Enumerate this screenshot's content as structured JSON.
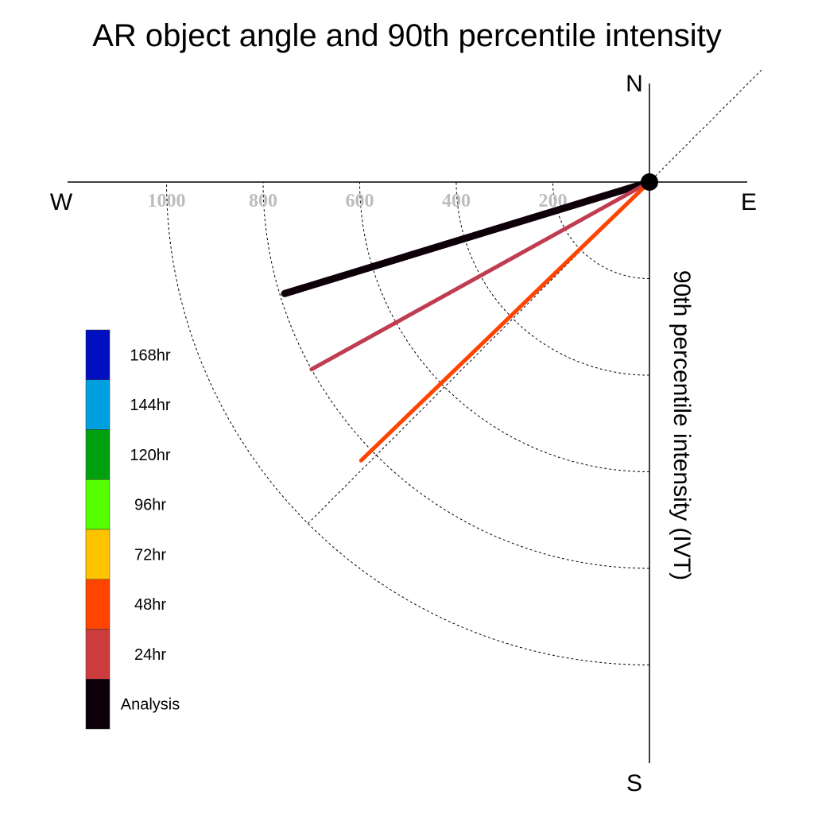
{
  "chart_data": {
    "type": "polar-line",
    "title": "AR object angle and 90th percentile intensity",
    "ylabel": "90th percentile intensity (IVT)",
    "compass": {
      "north": "N",
      "south": "S",
      "east": "E",
      "west": "W"
    },
    "radial_ticks": [
      "200",
      "400",
      "600",
      "800",
      "1000"
    ],
    "radial_tick_values": [
      200,
      400,
      600,
      800,
      1000
    ],
    "rlim": [
      0,
      1200
    ],
    "angle_convention": "degrees clockwise from north",
    "grid": true,
    "legend_position": "left",
    "legend": [
      {
        "label": "168hr",
        "color": "#0010c0"
      },
      {
        "label": "144hr",
        "color": "#00a0e0"
      },
      {
        "label": "120hr",
        "color": "#00a010"
      },
      {
        "label": "96hr",
        "color": "#55ff00"
      },
      {
        "label": "72hr",
        "color": "#ffc400"
      },
      {
        "label": "48hr",
        "color": "#ff4400"
      },
      {
        "label": "24hr",
        "color": "#cc3c3c"
      },
      {
        "label": "Analysis",
        "color": "#0e0008"
      }
    ],
    "series": [
      {
        "name": "Analysis",
        "angle": 253,
        "intensity": 790,
        "color": "#0e0008",
        "width": 9
      },
      {
        "name": "24hr",
        "angle": 241,
        "intensity": 800,
        "color": "#c03c50",
        "width": 5
      },
      {
        "name": "48hr",
        "angle": 226,
        "intensity": 830,
        "color": "#ff4400",
        "width": 5
      }
    ]
  }
}
